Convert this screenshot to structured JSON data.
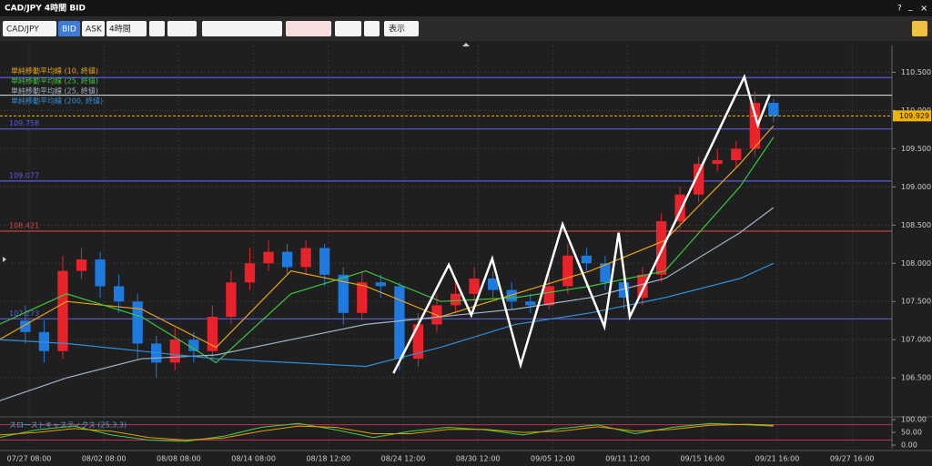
{
  "window": {
    "title": "CAD/JPY 4時間 BID",
    "help": "?",
    "minimize": "_",
    "close": "×"
  },
  "toolbar": {
    "symbol": "CAD/JPY",
    "bid": "BID",
    "ask": "ASK",
    "timeframe": "4時間",
    "display": "表示"
  },
  "chart_data": {
    "type": "candlestick",
    "xlim": [
      -0.389,
      11.533
    ],
    "ylim": [
      105.99,
      110.85
    ],
    "xticks": [
      {
        "value": 0,
        "label": "07/27 08:00"
      },
      {
        "value": 1,
        "label": "08/02 08:00"
      },
      {
        "value": 2,
        "label": "08/08 08:00"
      },
      {
        "value": 3,
        "label": "08/14 08:00"
      },
      {
        "value": 4,
        "label": "08/18 12:00"
      },
      {
        "value": 5,
        "label": "08/24 12:00"
      },
      {
        "value": 6,
        "label": "08/30 12:00"
      },
      {
        "value": 7,
        "label": "09/05 12:00"
      },
      {
        "value": 8,
        "label": "09/11 12:00"
      },
      {
        "value": 9,
        "label": "09/15 16:00"
      },
      {
        "value": 10,
        "label": "09/21 16:00"
      },
      {
        "value": 11,
        "label": "09/27 16:00"
      }
    ],
    "yticks": [
      {
        "value": 106.5,
        "label": "106.500"
      },
      {
        "value": 107,
        "label": "107.000"
      },
      {
        "value": 107.5,
        "label": "107.500"
      },
      {
        "value": 108,
        "label": "108.000"
      },
      {
        "value": 108.5,
        "label": "108.500"
      },
      {
        "value": 109,
        "label": "109.000"
      },
      {
        "value": 109.5,
        "label": "109.500"
      },
      {
        "value": 110,
        "label": "110.000"
      },
      {
        "value": 110.5,
        "label": "110.500"
      }
    ],
    "grid": true,
    "up_color": "#e8232b",
    "down_color": "#1f7ae0",
    "candles": {
      "x": [
        -0.05,
        0.2,
        0.45,
        0.7,
        0.95,
        1.2,
        1.45,
        1.7,
        1.95,
        2.2,
        2.45,
        2.7,
        2.95,
        3.2,
        3.45,
        3.7,
        3.95,
        4.2,
        4.45,
        4.7,
        4.95,
        5.2,
        5.45,
        5.7,
        5.95,
        6.2,
        6.45,
        6.7,
        6.95,
        7.2,
        7.45,
        7.7,
        7.95,
        8.2,
        8.45,
        8.7,
        8.95,
        9.2,
        9.45,
        9.7,
        9.95
      ],
      "open": [
        107.25,
        107.1,
        106.85,
        107.9,
        108.05,
        107.7,
        107.5,
        106.95,
        106.7,
        107,
        106.85,
        107.3,
        107.75,
        108,
        108.15,
        107.95,
        108.2,
        107.85,
        107.35,
        107.75,
        107.7,
        106.75,
        107.2,
        107.45,
        107.6,
        107.8,
        107.65,
        107.5,
        107.45,
        107.7,
        108.1,
        108,
        107.75,
        107.55,
        107.85,
        108.55,
        108.9,
        109.3,
        109.35,
        109.5,
        110.1
      ],
      "high": [
        107.45,
        107.25,
        108.1,
        108.2,
        108.15,
        107.85,
        107.6,
        107.05,
        107.15,
        107.1,
        107.45,
        107.9,
        108.2,
        108.3,
        108.25,
        108.3,
        108.25,
        107.95,
        107.9,
        107.85,
        107.75,
        107.35,
        107.6,
        107.75,
        107.95,
        107.9,
        107.75,
        107.6,
        107.85,
        108.25,
        108.2,
        108.1,
        107.85,
        107.95,
        108.65,
        109,
        109.4,
        109.5,
        109.6,
        110.25,
        110.15
      ],
      "low": [
        106.95,
        106.7,
        106.75,
        107.8,
        107.55,
        107.35,
        106.75,
        106.5,
        106.6,
        106.7,
        106.75,
        107.2,
        107.65,
        107.9,
        107.85,
        107.85,
        107.7,
        107.2,
        107.25,
        107.55,
        106.6,
        106.65,
        107.1,
        107.35,
        107.5,
        107.55,
        107.4,
        107.35,
        107.4,
        107.6,
        107.9,
        107.65,
        107.4,
        107.45,
        107.75,
        108.45,
        108.8,
        109.2,
        109.25,
        109.4,
        109.85
      ],
      "close": [
        107.1,
        106.85,
        107.9,
        108.05,
        107.7,
        107.5,
        106.95,
        106.7,
        107,
        106.85,
        107.3,
        107.75,
        108,
        108.15,
        107.95,
        108.2,
        107.85,
        107.35,
        107.75,
        107.7,
        106.75,
        107.2,
        107.45,
        107.6,
        107.8,
        107.65,
        107.5,
        107.45,
        107.7,
        108.1,
        108,
        107.75,
        107.55,
        107.85,
        108.55,
        108.9,
        109.3,
        109.35,
        109.5,
        110.1,
        109.93
      ]
    },
    "series": [
      {
        "name": "単純移動平均線 (10, 終値)",
        "color": "#e8a317",
        "x": [
          -0.4,
          0.5,
          1.5,
          2.5,
          3.5,
          4.5,
          5.5,
          6.5,
          7.5,
          8.5,
          9.5,
          9.95
        ],
        "values": [
          107,
          107.5,
          107.4,
          106.9,
          107.9,
          107.7,
          107.3,
          107.6,
          107.9,
          108.3,
          109.3,
          109.8
        ]
      },
      {
        "name": "単純移動平均線 (25, 終値)",
        "color": "#3cc83c",
        "x": [
          -0.4,
          0.5,
          1.5,
          2.5,
          3.5,
          4.5,
          5.5,
          6.5,
          7.5,
          8.5,
          9.5,
          9.95
        ],
        "values": [
          107.2,
          107.6,
          107.3,
          106.7,
          107.6,
          107.9,
          107.5,
          107.55,
          107.7,
          107.9,
          109,
          109.65
        ]
      },
      {
        "name": "単純移動平均線 (25, 終値)",
        "color": "#9fb4c8",
        "x": [
          -0.4,
          0.5,
          1.5,
          2.5,
          3.5,
          4.5,
          5.5,
          6.5,
          7.5,
          8.5,
          9.5,
          9.95
        ],
        "values": [
          106.2,
          106.5,
          106.75,
          106.8,
          107,
          107.2,
          107.3,
          107.4,
          107.55,
          107.8,
          108.4,
          108.73
        ]
      },
      {
        "name": "単純移動平均線 (200, 終値)",
        "color": "#2f8fd8",
        "x": [
          -0.4,
          0.5,
          1.5,
          2.5,
          3.5,
          4.5,
          5.5,
          6.5,
          7.5,
          8.5,
          9.5,
          9.95
        ],
        "values": [
          107,
          106.95,
          106.85,
          106.75,
          106.7,
          106.65,
          106.9,
          107.2,
          107.35,
          107.55,
          107.8,
          108
        ]
      }
    ],
    "levels": [
      {
        "value": 110.43,
        "color": "#5b5be0",
        "show_label": false
      },
      {
        "value": 110.2,
        "color": "#d0d0d0",
        "show_label": false
      },
      {
        "value": 109.758,
        "color": "#5b5be0",
        "show_label": true
      },
      {
        "value": 109.077,
        "color": "#5b5be0",
        "show_label": true
      },
      {
        "value": 108.421,
        "color": "#d04848",
        "show_label": true
      },
      {
        "value": 107.273,
        "color": "#5b5be0",
        "show_label": true
      }
    ],
    "last": {
      "value": 109.929,
      "color": "#f0b400"
    },
    "zigzag": {
      "color": "#ffffff",
      "x": [
        4.87,
        5.61,
        5.91,
        6.19,
        6.57,
        7.13,
        7.69,
        7.88,
        8.03,
        9.56,
        9.74,
        9.9
      ],
      "y": [
        106.56,
        107.98,
        107.32,
        108.06,
        106.67,
        108.51,
        107.17,
        108.4,
        107.3,
        110.44,
        109.81,
        110.21
      ]
    },
    "oscillator": {
      "title": "スローストキャスティクス (25,3,3)",
      "ylim": [
        -14,
        111
      ],
      "yticks": [
        {
          "value": 100,
          "label": "100.00"
        },
        {
          "value": 50,
          "label": "50.00"
        },
        {
          "value": 0,
          "label": "0.00"
        }
      ],
      "levels": [
        80,
        20
      ],
      "level_color": "#c03050",
      "x": [
        -0.4,
        0.1,
        0.6,
        1.1,
        1.6,
        2.1,
        2.6,
        3.1,
        3.6,
        4.1,
        4.6,
        5.1,
        5.6,
        6.1,
        6.6,
        7.1,
        7.6,
        8.1,
        8.6,
        9.1,
        9.6,
        9.95
      ],
      "lines": [
        {
          "color": "#48d048",
          "values": [
            30,
            60,
            75,
            40,
            20,
            15,
            35,
            70,
            85,
            60,
            30,
            55,
            70,
            60,
            40,
            65,
            80,
            45,
            70,
            85,
            80,
            75
          ]
        },
        {
          "color": "#e0a000",
          "values": [
            40,
            50,
            65,
            55,
            30,
            20,
            28,
            55,
            75,
            70,
            45,
            45,
            62,
            62,
            50,
            55,
            72,
            55,
            62,
            78,
            82,
            78
          ]
        }
      ]
    }
  }
}
